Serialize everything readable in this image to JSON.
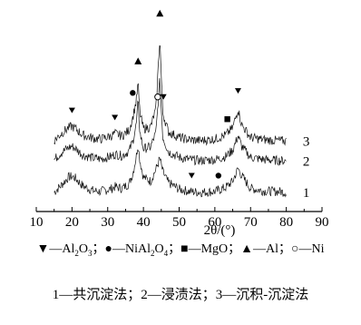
{
  "chart_data": {
    "type": "line",
    "xlabel": "2θ/(°)",
    "xlim": [
      10,
      90
    ],
    "x_ticks": [
      "10",
      "20",
      "30",
      "40",
      "50",
      "60",
      "70",
      "80",
      "90"
    ],
    "grid": false,
    "series": [
      {
        "name": "1",
        "x": [
          15,
          17,
          19,
          20,
          21,
          23,
          26,
          28,
          31,
          32,
          34,
          36,
          37,
          38,
          38.5,
          39,
          40,
          42,
          43.5,
          44.6,
          45.4,
          47,
          50,
          53,
          56,
          60,
          63,
          65,
          66.5,
          67.5,
          70,
          74,
          78,
          80
        ],
        "y": [
          1.0,
          2.8,
          4.8,
          5.0,
          4.5,
          2.6,
          1.4,
          1.2,
          1.9,
          2.4,
          2.0,
          3.2,
          5.6,
          10.0,
          13.2,
          9.0,
          4.8,
          3.8,
          6.8,
          9.5,
          6.2,
          3.4,
          1.8,
          1.2,
          1.0,
          1.2,
          2.2,
          3.8,
          7.0,
          5.2,
          2.0,
          1.3,
          1.2,
          1.0
        ]
      },
      {
        "name": "2",
        "x": [
          15,
          17,
          19,
          20,
          21,
          23,
          26,
          28,
          31,
          32,
          34,
          36,
          37,
          38,
          38.5,
          39,
          40,
          42,
          43.5,
          44.6,
          45.4,
          47,
          50,
          53,
          56,
          60,
          63,
          65,
          66.5,
          67.5,
          70,
          74,
          78,
          80
        ],
        "y": [
          9.2,
          11.0,
          12.2,
          12.6,
          12.0,
          10.4,
          9.6,
          9.4,
          10.0,
          10.6,
          10.2,
          11.4,
          13.8,
          18.0,
          24.0,
          16.0,
          12.0,
          12.4,
          16.0,
          29.5,
          15.0,
          11.2,
          9.8,
          9.2,
          9.0,
          9.2,
          10.0,
          11.6,
          15.2,
          12.6,
          9.8,
          9.2,
          9.0,
          8.9
        ]
      },
      {
        "name": "3",
        "x": [
          15,
          17,
          19,
          20,
          21,
          23,
          26,
          28,
          31,
          32,
          34,
          36,
          37,
          38,
          38.5,
          39,
          40,
          42,
          43.5,
          44.6,
          45.4,
          47,
          50,
          53,
          56,
          60,
          63,
          65,
          66.5,
          67.5,
          70,
          74,
          78,
          80
        ],
        "y": [
          14.0,
          15.8,
          17.2,
          17.6,
          17.0,
          15.4,
          14.6,
          14.4,
          15.2,
          15.8,
          15.2,
          16.6,
          19.8,
          24.0,
          28.5,
          21.0,
          17.0,
          17.4,
          22.0,
          40.0,
          21.0,
          16.2,
          14.8,
          14.2,
          14.0,
          14.4,
          15.4,
          17.2,
          22.0,
          18.0,
          14.8,
          14.2,
          14.0,
          13.9
        ]
      }
    ],
    "annotations": [
      {
        "symbol": "down-triangle",
        "phase": "Al2O3",
        "x": 20,
        "y": 21.6
      },
      {
        "symbol": "down-triangle",
        "phase": "Al2O3",
        "x": 32,
        "y": 19.8
      },
      {
        "symbol": "filled-circle",
        "phase": "NiAl2O4",
        "x": 37,
        "y": 26.0
      },
      {
        "symbol": "up-triangle",
        "phase": "Al",
        "x": 38.5,
        "y": 34.0
      },
      {
        "symbol": "open-circle",
        "phase": "Ni",
        "x": 44.0,
        "y": 25.0
      },
      {
        "symbol": "up-triangle",
        "phase": "Al",
        "x": 44.6,
        "y": 46.0
      },
      {
        "symbol": "down-triangle",
        "phase": "Al2O3",
        "x": 45.6,
        "y": 25.0
      },
      {
        "symbol": "filled-square",
        "phase": "MgO",
        "x": 63.5,
        "y": 19.4
      },
      {
        "symbol": "down-triangle",
        "phase": "Al2O3",
        "x": 66.5,
        "y": 26.5
      },
      {
        "symbol": "down-triangle",
        "phase": "Al2O3",
        "x": 53.5,
        "y": 5.2
      },
      {
        "symbol": "filled-circle",
        "phase": "NiAl2O4",
        "x": 61,
        "y": 5.2
      }
    ],
    "curve_labels": [
      "3",
      "2",
      "1"
    ],
    "ylim": [
      -2,
      48
    ]
  },
  "legend": {
    "al2o3": {
      "symbol": "▼",
      "label_main": "—Al",
      "sub1": "2",
      "mid": "O",
      "sub2": "3",
      "sep": "；"
    },
    "nial2o4": {
      "symbol": "●",
      "label_main": "—NiAl",
      "sub1": "2",
      "mid": "O",
      "sub2": "4",
      "sep": "；"
    },
    "mgo": {
      "symbol": "■",
      "label": "—MgO",
      "sep": "；"
    },
    "al": {
      "symbol": "▲",
      "label": "—Al",
      "sep": "；"
    },
    "ni": {
      "symbol": "○",
      "label": "—Ni"
    }
  },
  "caption": "1—共沉淀法；2—浸渍法；3—沉积-沉淀法"
}
